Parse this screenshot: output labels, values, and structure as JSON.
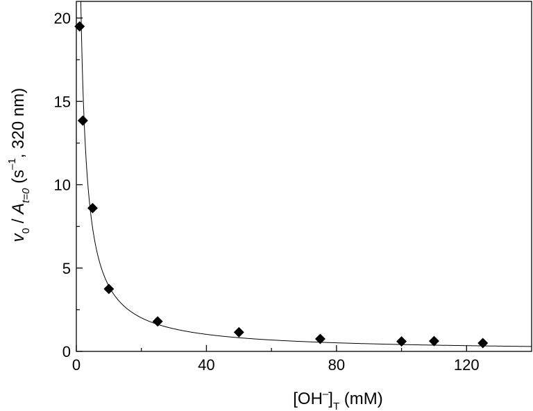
{
  "chart_data": {
    "type": "scatter",
    "x": [
      1,
      2,
      5,
      10,
      25,
      50,
      75,
      100,
      110,
      125
    ],
    "y": [
      19.5,
      13.85,
      8.6,
      3.75,
      1.8,
      1.15,
      0.75,
      0.6,
      0.62,
      0.5
    ],
    "fit_curve": {
      "form": "a / (b + x)",
      "a": 41.5,
      "b": 0.6
    },
    "xlim": [
      0,
      140
    ],
    "ylim": [
      0,
      21
    ],
    "xticks": [
      0,
      40,
      80,
      120
    ],
    "yticks": [
      0,
      5,
      10,
      15,
      20
    ],
    "xticks_minor": [
      20,
      60,
      100
    ],
    "yticks_minor": [
      2.5,
      7.5,
      12.5,
      17.5
    ],
    "xlabel": {
      "bracket_open": "[OH",
      "sup": "–",
      "bracket_close": "]",
      "sub": "T",
      "units": " (mM)"
    },
    "ylabel": {
      "v": "v",
      "v_sub": "0",
      "slash": " / ",
      "A": "A",
      "A_sub": "t=0",
      "units_open": "  (s",
      "units_sup": "–1",
      "units_close": ", 320 nm)"
    },
    "marker": "diamond",
    "colors": {
      "marker": "#000000",
      "line": "#000000"
    },
    "grid": false
  }
}
